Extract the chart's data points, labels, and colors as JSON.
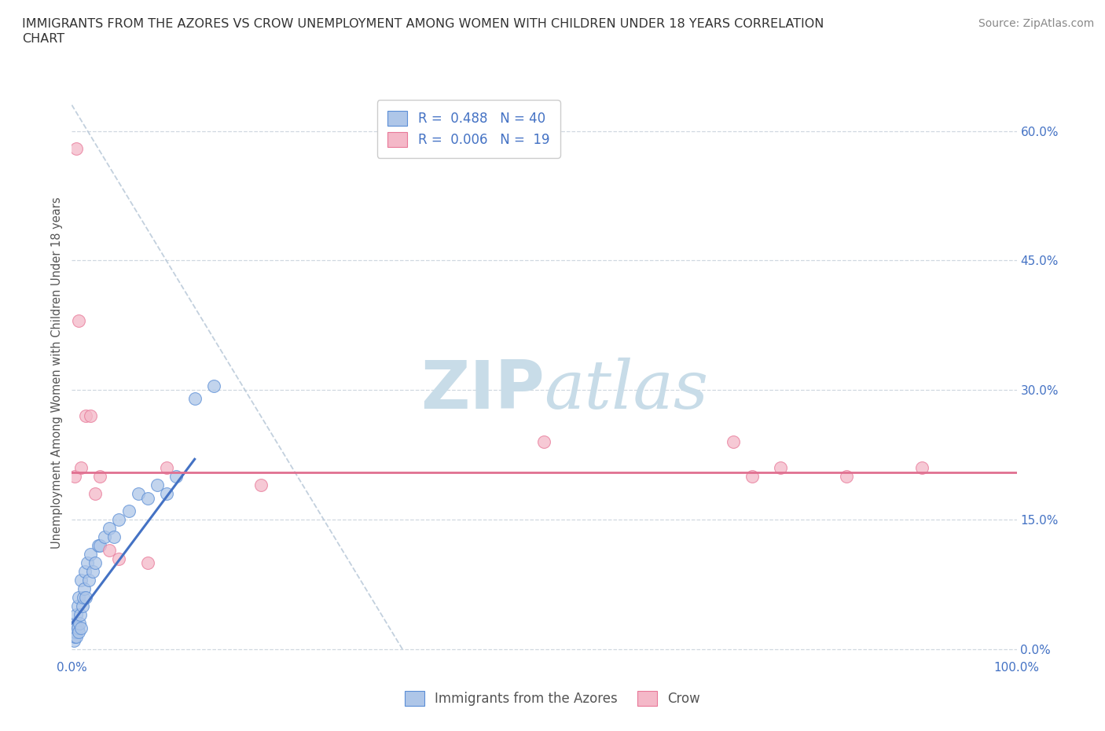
{
  "title_line1": "IMMIGRANTS FROM THE AZORES VS CROW UNEMPLOYMENT AMONG WOMEN WITH CHILDREN UNDER 18 YEARS CORRELATION",
  "title_line2": "CHART",
  "source": "Source: ZipAtlas.com",
  "ylabel": "Unemployment Among Women with Children Under 18 years",
  "y_ticks": [
    0.0,
    0.15,
    0.3,
    0.45,
    0.6
  ],
  "y_tick_labels": [
    "0.0%",
    "15.0%",
    "30.0%",
    "45.0%",
    "60.0%"
  ],
  "xlim": [
    0,
    1.0
  ],
  "ylim": [
    -0.01,
    0.65
  ],
  "legend_label1": "Immigrants from the Azores",
  "legend_label2": "Crow",
  "R1": "0.488",
  "N1": "40",
  "R2": "0.006",
  "N2": "19",
  "color_blue_fill": "#aec6e8",
  "color_pink_fill": "#f4b8c8",
  "color_blue_edge": "#5b8ed6",
  "color_pink_edge": "#e87898",
  "color_blue_line": "#4472c4",
  "color_pink_line": "#e07090",
  "color_trend_dashed": "#b8c8d8",
  "watermark_color": "#c8dce8",
  "grid_color": "#d0d8e0",
  "background_color": "#ffffff",
  "blue_points_x": [
    0.001,
    0.002,
    0.003,
    0.003,
    0.004,
    0.004,
    0.005,
    0.005,
    0.006,
    0.006,
    0.007,
    0.007,
    0.008,
    0.009,
    0.01,
    0.01,
    0.011,
    0.012,
    0.013,
    0.014,
    0.015,
    0.016,
    0.018,
    0.02,
    0.022,
    0.025,
    0.028,
    0.03,
    0.035,
    0.04,
    0.045,
    0.05,
    0.06,
    0.07,
    0.08,
    0.09,
    0.1,
    0.11,
    0.13,
    0.15
  ],
  "blue_points_y": [
    0.02,
    0.01,
    0.015,
    0.025,
    0.02,
    0.03,
    0.015,
    0.04,
    0.025,
    0.05,
    0.02,
    0.06,
    0.03,
    0.04,
    0.025,
    0.08,
    0.05,
    0.06,
    0.07,
    0.09,
    0.06,
    0.1,
    0.08,
    0.11,
    0.09,
    0.1,
    0.12,
    0.12,
    0.13,
    0.14,
    0.13,
    0.15,
    0.16,
    0.18,
    0.175,
    0.19,
    0.18,
    0.2,
    0.29,
    0.305
  ],
  "pink_points_x": [
    0.003,
    0.005,
    0.007,
    0.01,
    0.015,
    0.02,
    0.025,
    0.03,
    0.04,
    0.05,
    0.08,
    0.1,
    0.2,
    0.5,
    0.7,
    0.72,
    0.75,
    0.82,
    0.9
  ],
  "pink_points_y": [
    0.2,
    0.58,
    0.38,
    0.21,
    0.27,
    0.27,
    0.18,
    0.2,
    0.115,
    0.105,
    0.1,
    0.21,
    0.19,
    0.24,
    0.24,
    0.2,
    0.21,
    0.2,
    0.21
  ],
  "blue_line_x0": 0.0,
  "blue_line_y0": 0.03,
  "blue_line_x1": 0.13,
  "blue_line_y1": 0.22,
  "pink_line_y": 0.205,
  "dashed_line_x0": 0.35,
  "dashed_line_y0": 0.0,
  "dashed_line_x1": 0.0,
  "dashed_line_y1": 0.63
}
